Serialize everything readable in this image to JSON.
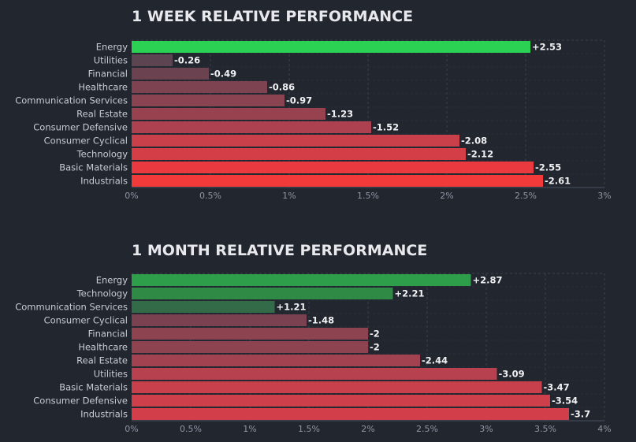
{
  "chart_data": [
    {
      "type": "bar",
      "orientation": "horizontal",
      "title": "1 WEEK RELATIVE PERFORMANCE",
      "categories": [
        "Energy",
        "Utilities",
        "Financial",
        "Healthcare",
        "Communication Services",
        "Real Estate",
        "Consumer Defensive",
        "Consumer Cyclical",
        "Technology",
        "Basic Materials",
        "Industrials"
      ],
      "values": [
        2.53,
        -0.26,
        -0.49,
        -0.86,
        -0.97,
        -1.23,
        -1.52,
        -2.08,
        -2.12,
        -2.55,
        -2.61
      ],
      "value_labels": [
        "+2.53",
        "-0.26",
        "-0.49",
        "-0.86",
        "-0.97",
        "-1.23",
        "-1.52",
        "-2.08",
        "-2.12",
        "-2.55",
        "-2.61"
      ],
      "bar_colors": [
        "#2bd152",
        "#5c4450",
        "#6b4350",
        "#7d4350",
        "#8a4350",
        "#984250",
        "#ad4150",
        "#c9404a",
        "#d43e47",
        "#eb3a3f",
        "#f23a3b"
      ],
      "xlim": [
        0,
        3
      ],
      "xticks": [
        "0%",
        "0.5%",
        "1%",
        "1.5%",
        "2%",
        "2.5%",
        "3%"
      ],
      "grid": true
    },
    {
      "type": "bar",
      "orientation": "horizontal",
      "title": "1 MONTH RELATIVE PERFORMANCE",
      "categories": [
        "Energy",
        "Technology",
        "Communication Services",
        "Consumer Cyclical",
        "Financial",
        "Healthcare",
        "Real Estate",
        "Utilities",
        "Basic Materials",
        "Consumer Defensive",
        "Industrials"
      ],
      "values": [
        2.87,
        2.21,
        1.21,
        -1.48,
        -2,
        -2,
        -2.44,
        -3.09,
        -3.47,
        -3.54,
        -3.7
      ],
      "value_labels": [
        "+2.87",
        "+2.21",
        "+1.21",
        "-1.48",
        "-2",
        "-2",
        "-2.44",
        "-3.09",
        "-3.47",
        "-3.54",
        "-3.7"
      ],
      "bar_colors": [
        "#2e9e4a",
        "#2f8a45",
        "#336b48",
        "#7a4250",
        "#8d4350",
        "#8d4350",
        "#a24250",
        "#b8414f",
        "#c8404c",
        "#cc3f4b",
        "#d23e49"
      ],
      "xlim": [
        0,
        4
      ],
      "xticks": [
        "0%",
        "0.5%",
        "1%",
        "1.5%",
        "2%",
        "2.5%",
        "3%",
        "3.5%",
        "4%"
      ],
      "grid": true
    }
  ]
}
